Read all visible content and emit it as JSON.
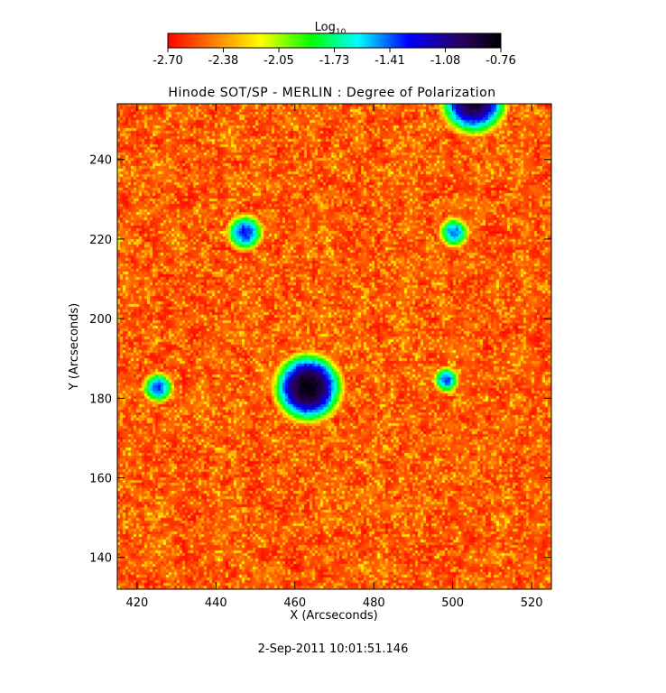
{
  "chart_data": {
    "type": "heatmap",
    "title": "Hinode SOT/SP - MERLIN : Degree of Polarization",
    "xlabel": "X (Arcseconds)",
    "ylabel": "Y (Arcseconds)",
    "xlim": [
      415,
      525
    ],
    "ylim": [
      132,
      254
    ],
    "x_ticks": [
      420,
      440,
      460,
      480,
      500,
      520
    ],
    "y_ticks": [
      140,
      160,
      180,
      200,
      220,
      240
    ],
    "colorbar": {
      "title_main": "Log",
      "title_sub": "10",
      "range": [
        -2.7,
        -0.76
      ],
      "tick_labels": [
        "-2.70",
        "-2.38",
        "-2.05",
        "-1.73",
        "-1.41",
        "-1.08",
        "-0.76"
      ],
      "colormap": [
        "#ff0000",
        "#ff8000",
        "#ffff00",
        "#00ff00",
        "#00ffff",
        "#0000ff",
        "#2a0060",
        "#000000"
      ]
    },
    "features": [
      {
        "x": 463,
        "y": 183,
        "peak": -0.85,
        "radius": 5.5
      },
      {
        "x": 505,
        "y": 255,
        "peak": -0.95,
        "radius": 5.5
      },
      {
        "x": 447,
        "y": 222,
        "peak": -1.4,
        "radius": 3.5
      },
      {
        "x": 500,
        "y": 222,
        "peak": -1.5,
        "radius": 3.0
      },
      {
        "x": 425,
        "y": 183,
        "peak": -1.45,
        "radius": 3.0
      },
      {
        "x": 498,
        "y": 185,
        "peak": -1.45,
        "radius": 2.5
      }
    ],
    "grid": false
  },
  "footer": {
    "timestamp": "2-Sep-2011 10:01:51.146"
  }
}
